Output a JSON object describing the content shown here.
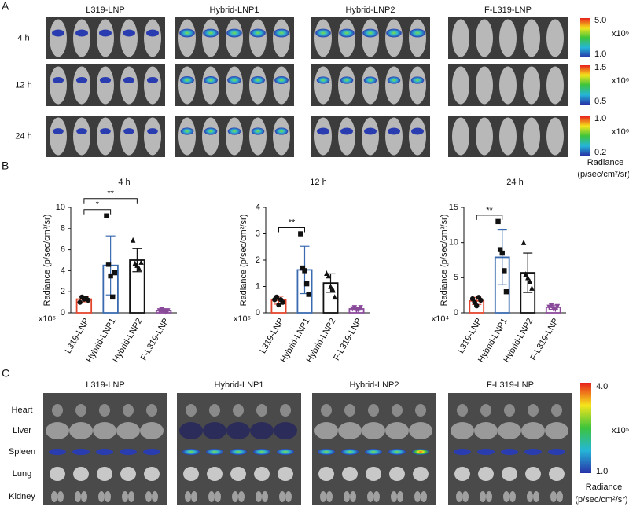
{
  "panel_labels": [
    "A",
    "B",
    "C"
  ],
  "panel_a": {
    "columns": [
      "L319-LNP",
      "Hybrid-LNP1",
      "Hybrid-LNP2",
      "F-L319-LNP"
    ],
    "rows": [
      "4 h",
      "12 h",
      "24 h"
    ],
    "colorbars": [
      {
        "max": "5.0",
        "multiplier": "x10⁶",
        "min": "1.0"
      },
      {
        "max": "1.5",
        "multiplier": "x10⁶",
        "min": "0.5"
      },
      {
        "max": "1.0",
        "multiplier": "x10⁶",
        "min": "0.2"
      }
    ],
    "colorbar_title": "Radiance",
    "colorbar_unit": "(p/sec/cm²/sr)"
  },
  "chart_data": [
    {
      "type": "bar",
      "title": "4 h",
      "y_label": "Radiance (p/sec/cm²/sr)",
      "multiplier": "x10⁵",
      "categories": [
        "L319-LNP",
        "Hybrid-LNP1",
        "Hybrid-LNP2",
        "F-L319-LNP"
      ],
      "values": [
        1.3,
        4.5,
        5.0,
        0.2
      ],
      "errors": [
        0.25,
        2.8,
        1.1,
        0.1
      ],
      "colors": [
        "#e3452c",
        "#3a6bb0",
        "#111111",
        "#8a4a9a"
      ],
      "points": [
        [
          1.0,
          1.5,
          1.3,
          1.4,
          1.2
        ],
        [
          9.2,
          4.6,
          3.5,
          1.5,
          3.8
        ],
        [
          6.9,
          4.7,
          4.5,
          4.2,
          4.8
        ],
        [
          0.2,
          0.3,
          0.2,
          0.1,
          0.2
        ]
      ],
      "annotations": [
        {
          "text": "*",
          "from": "L319-LNP",
          "to": "Hybrid-LNP1"
        },
        {
          "text": "**",
          "from": "L319-LNP",
          "to": "Hybrid-LNP2"
        }
      ],
      "ylim": [
        0,
        10
      ],
      "yticks": [
        0,
        2,
        4,
        6,
        8,
        10
      ]
    },
    {
      "type": "bar",
      "title": "12 h",
      "y_label": "Radiance (p/sec/cm²/sr)",
      "multiplier": "x10⁵",
      "categories": [
        "L319-LNP",
        "Hybrid-LNP1",
        "Hybrid-LNP2",
        "F-L319-LNP"
      ],
      "values": [
        0.48,
        1.63,
        1.13,
        0.15
      ],
      "errors": [
        0.15,
        0.9,
        0.35,
        0.05
      ],
      "colors": [
        "#e3452c",
        "#3a6bb0",
        "#111111",
        "#8a4a9a"
      ],
      "points": [
        [
          0.5,
          0.6,
          0.3,
          0.5,
          0.4
        ],
        [
          3.0,
          1.7,
          1.6,
          1.1,
          0.7
        ],
        [
          1.5,
          1.4,
          1.0,
          0.9,
          0.6
        ],
        [
          0.15,
          0.2,
          0.1,
          0.1,
          0.2
        ]
      ],
      "annotations": [
        {
          "text": "**",
          "from": "L319-LNP",
          "to": "Hybrid-LNP1"
        }
      ],
      "ylim": [
        0,
        4
      ],
      "yticks": [
        0,
        1,
        2,
        3,
        4
      ]
    },
    {
      "type": "bar",
      "title": "24 h",
      "y_label": "Radiance (p/sec/cm²/sr)",
      "multiplier": "x10⁴",
      "categories": [
        "L319-LNP",
        "Hybrid-LNP1",
        "Hybrid-LNP2",
        "F-L319-LNP"
      ],
      "values": [
        1.7,
        7.9,
        5.7,
        0.8
      ],
      "errors": [
        0.5,
        3.9,
        2.8,
        0.3
      ],
      "colors": [
        "#e3452c",
        "#3a6bb0",
        "#111111",
        "#8a4a9a"
      ],
      "points": [
        [
          2.0,
          1.5,
          1.0,
          2.2,
          1.8
        ],
        [
          13.0,
          9.0,
          8.5,
          6.0,
          3.0
        ],
        [
          10.0,
          5.5,
          5.0,
          4.5,
          3.5
        ],
        [
          0.8,
          1.0,
          0.6,
          0.5,
          0.9
        ]
      ],
      "annotations": [
        {
          "text": "**",
          "from": "L319-LNP",
          "to": "Hybrid-LNP1"
        }
      ],
      "ylim": [
        0,
        15
      ],
      "yticks": [
        0,
        5,
        10,
        15
      ]
    }
  ],
  "panel_c": {
    "columns": [
      "L319-LNP",
      "Hybrid-LNP1",
      "Hybrid-LNP2",
      "F-L319-LNP"
    ],
    "rows": [
      "Heart",
      "Liver",
      "Spleen",
      "Lung",
      "Kidney"
    ],
    "colorbar": {
      "max": "4.0",
      "multiplier": "x10⁵",
      "min": "1.0"
    },
    "colorbar_title": "Radiance",
    "colorbar_unit": "(p/sec/cm²/sr)"
  }
}
